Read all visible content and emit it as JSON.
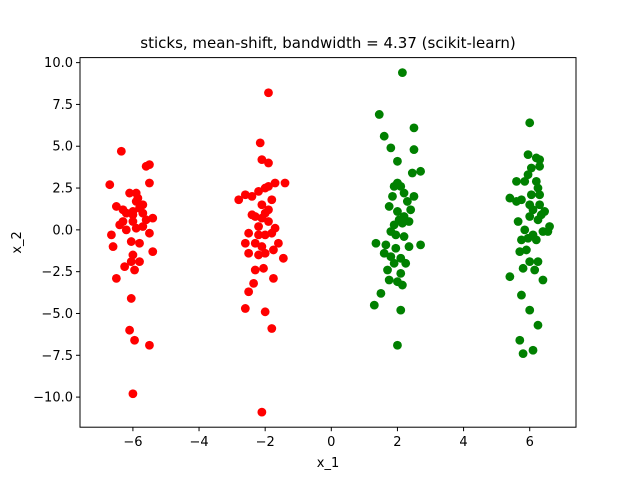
{
  "chart_data": {
    "type": "scatter",
    "title": "sticks, mean-shift, bandwidth = 4.37 (scikit-learn)",
    "xlabel": "x_1",
    "ylabel": "x_2",
    "xlim": [
      -7.6,
      7.4
    ],
    "ylim": [
      -11.8,
      10.3
    ],
    "xticks": [
      -6,
      -4,
      -2,
      0,
      2,
      4,
      6
    ],
    "xtick_labels": [
      "−6",
      "−4",
      "−2",
      "0",
      "2",
      "4",
      "6"
    ],
    "yticks": [
      -10.0,
      -7.5,
      -5.0,
      -2.5,
      0.0,
      2.5,
      5.0,
      7.5,
      10.0
    ],
    "ytick_labels": [
      "−10.0",
      "−7.5",
      "−5.0",
      "−2.5",
      "0.0",
      "2.5",
      "5.0",
      "7.5",
      "10.0"
    ],
    "grid": false,
    "legend": "none",
    "series": [
      {
        "color": "#ff0000",
        "points": [
          [
            -6.35,
            4.7
          ],
          [
            -6.7,
            2.7
          ],
          [
            -6.5,
            1.4
          ],
          [
            -6.3,
            1.2
          ],
          [
            -6.1,
            2.2
          ],
          [
            -5.9,
            2.2
          ],
          [
            -5.9,
            1.7
          ],
          [
            -5.5,
            3.9
          ],
          [
            -5.6,
            3.8
          ],
          [
            -5.5,
            2.8
          ],
          [
            -6.2,
            1.0
          ],
          [
            -6.0,
            0.9
          ],
          [
            -6.0,
            1.1
          ],
          [
            -5.8,
            1.3
          ],
          [
            -5.7,
            1.0
          ],
          [
            -5.4,
            0.7
          ],
          [
            -6.65,
            -0.3
          ],
          [
            -6.6,
            -1.0
          ],
          [
            -6.3,
            0.5
          ],
          [
            -6.0,
            0.5
          ],
          [
            -5.9,
            0.1
          ],
          [
            -5.7,
            0.2
          ],
          [
            -5.5,
            -0.2
          ],
          [
            -6.05,
            -0.7
          ],
          [
            -5.8,
            -0.8
          ],
          [
            -5.4,
            -1.3
          ],
          [
            -6.25,
            -2.2
          ],
          [
            -6.05,
            -1.9
          ],
          [
            -5.95,
            -2.4
          ],
          [
            -5.8,
            -1.9
          ],
          [
            -6.5,
            -2.9
          ],
          [
            -6.05,
            -4.1
          ],
          [
            -6.1,
            -6.0
          ],
          [
            -5.95,
            -6.6
          ],
          [
            -5.5,
            -6.9
          ],
          [
            -6.0,
            -9.8
          ],
          [
            -6.2,
            0.0
          ],
          [
            -5.7,
            1.5
          ],
          [
            -5.85,
            1.9
          ],
          [
            -6.4,
            0.3
          ],
          [
            -6.0,
            -1.5
          ],
          [
            -5.6,
            0.6
          ]
        ]
      },
      {
        "color": "#ff0000",
        "points": [
          [
            -1.9,
            8.2
          ],
          [
            -2.15,
            5.2
          ],
          [
            -2.1,
            4.2
          ],
          [
            -1.9,
            4.0
          ],
          [
            -2.6,
            2.1
          ],
          [
            -2.4,
            2.0
          ],
          [
            -2.2,
            2.3
          ],
          [
            -2.0,
            2.5
          ],
          [
            -1.9,
            2.6
          ],
          [
            -1.7,
            2.8
          ],
          [
            -1.4,
            2.8
          ],
          [
            -2.8,
            1.8
          ],
          [
            -2.1,
            1.5
          ],
          [
            -1.8,
            1.8
          ],
          [
            -2.3,
            0.8
          ],
          [
            -2.1,
            0.7
          ],
          [
            -1.9,
            0.5
          ],
          [
            -2.2,
            0.2
          ],
          [
            -2.5,
            -0.2
          ],
          [
            -2.6,
            -0.8
          ],
          [
            -2.3,
            -0.8
          ],
          [
            -2.2,
            -0.3
          ],
          [
            -2.0,
            -0.3
          ],
          [
            -1.8,
            -0.2
          ],
          [
            -1.6,
            -0.8
          ],
          [
            -2.5,
            -1.4
          ],
          [
            -2.2,
            -1.5
          ],
          [
            -2.0,
            -1.4
          ],
          [
            -1.75,
            -1.2
          ],
          [
            -1.45,
            -1.7
          ],
          [
            -2.3,
            -2.4
          ],
          [
            -2.05,
            -2.3
          ],
          [
            -1.75,
            -2.9
          ],
          [
            -2.5,
            -3.7
          ],
          [
            -2.35,
            -3.2
          ],
          [
            -2.6,
            -4.7
          ],
          [
            -2.0,
            -4.9
          ],
          [
            -1.8,
            -5.9
          ],
          [
            -2.1,
            -10.9
          ],
          [
            -2.0,
            1.0
          ],
          [
            -2.4,
            0.9
          ],
          [
            -1.7,
            0.1
          ],
          [
            -2.1,
            -1.0
          ],
          [
            -1.9,
            1.2
          ]
        ]
      },
      {
        "color": "#008000",
        "points": [
          [
            2.15,
            9.4
          ],
          [
            1.45,
            6.9
          ],
          [
            2.5,
            6.1
          ],
          [
            1.6,
            5.6
          ],
          [
            1.8,
            4.9
          ],
          [
            2.5,
            4.8
          ],
          [
            2.0,
            4.1
          ],
          [
            2.45,
            3.4
          ],
          [
            2.7,
            3.5
          ],
          [
            1.9,
            2.6
          ],
          [
            2.0,
            2.8
          ],
          [
            2.1,
            2.6
          ],
          [
            1.85,
            2.0
          ],
          [
            2.2,
            2.2
          ],
          [
            2.5,
            2.0
          ],
          [
            1.75,
            1.4
          ],
          [
            2.0,
            1.1
          ],
          [
            2.4,
            1.2
          ],
          [
            2.05,
            0.6
          ],
          [
            2.2,
            0.8
          ],
          [
            1.9,
            0.3
          ],
          [
            2.15,
            0.4
          ],
          [
            2.35,
            0.5
          ],
          [
            1.8,
            -0.1
          ],
          [
            1.35,
            -0.8
          ],
          [
            1.65,
            -0.9
          ],
          [
            1.95,
            -0.3
          ],
          [
            2.2,
            -0.4
          ],
          [
            2.7,
            -0.9
          ],
          [
            1.95,
            -1.1
          ],
          [
            2.35,
            -1.0
          ],
          [
            1.8,
            -1.6
          ],
          [
            2.1,
            -1.7
          ],
          [
            1.9,
            -2.0
          ],
          [
            2.25,
            -2.0
          ],
          [
            1.7,
            -2.4
          ],
          [
            2.1,
            -2.6
          ],
          [
            1.75,
            -3.0
          ],
          [
            2.0,
            -3.1
          ],
          [
            2.15,
            -3.3
          ],
          [
            1.5,
            -3.8
          ],
          [
            1.3,
            -4.5
          ],
          [
            2.1,
            -4.8
          ],
          [
            2.0,
            -6.9
          ],
          [
            2.3,
            1.7
          ],
          [
            1.6,
            -1.4
          ]
        ]
      },
      {
        "color": "#008000",
        "points": [
          [
            6.0,
            6.4
          ],
          [
            5.95,
            4.5
          ],
          [
            6.2,
            4.3
          ],
          [
            6.3,
            3.8
          ],
          [
            6.3,
            4.2
          ],
          [
            6.05,
            3.7
          ],
          [
            5.95,
            3.3
          ],
          [
            5.85,
            2.9
          ],
          [
            5.6,
            2.9
          ],
          [
            6.2,
            2.9
          ],
          [
            6.05,
            2.1
          ],
          [
            6.3,
            2.1
          ],
          [
            6.25,
            2.5
          ],
          [
            5.4,
            1.9
          ],
          [
            5.6,
            1.7
          ],
          [
            5.75,
            1.8
          ],
          [
            6.0,
            1.5
          ],
          [
            6.3,
            1.5
          ],
          [
            6.1,
            1.2
          ],
          [
            6.0,
            0.8
          ],
          [
            6.25,
            0.6
          ],
          [
            5.65,
            0.5
          ],
          [
            6.6,
            0.2
          ],
          [
            6.4,
            -0.1
          ],
          [
            6.55,
            -0.1
          ],
          [
            6.1,
            -0.3
          ],
          [
            5.75,
            -0.6
          ],
          [
            5.95,
            -0.5
          ],
          [
            6.2,
            -0.6
          ],
          [
            5.7,
            -1.3
          ],
          [
            5.9,
            -1.2
          ],
          [
            6.0,
            -1.9
          ],
          [
            5.8,
            -2.3
          ],
          [
            6.25,
            -1.9
          ],
          [
            6.15,
            -2.4
          ],
          [
            5.4,
            -2.8
          ],
          [
            6.4,
            -3.0
          ],
          [
            5.75,
            -3.9
          ],
          [
            6.0,
            -4.8
          ],
          [
            6.25,
            -5.7
          ],
          [
            5.7,
            -6.6
          ],
          [
            6.1,
            -7.2
          ],
          [
            5.8,
            -7.4
          ],
          [
            6.35,
            0.9
          ],
          [
            5.85,
            0.0
          ],
          [
            6.45,
            1.1
          ]
        ]
      }
    ]
  }
}
